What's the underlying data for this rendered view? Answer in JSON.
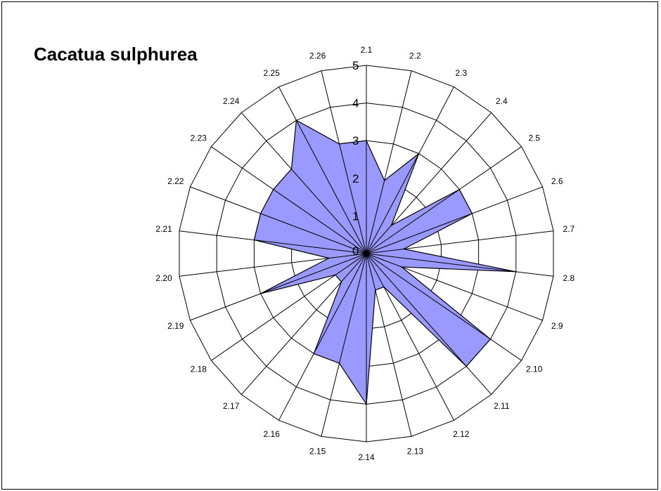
{
  "chart_data": {
    "type": "radar",
    "title": "Cacatua sulphurea",
    "categories": [
      "2.1",
      "2.2",
      "2.3",
      "2.4",
      "2.5",
      "2.6",
      "2.7",
      "2.8",
      "2.9",
      "2.10",
      "2.11",
      "2.12",
      "2.13",
      "2.14",
      "2.15",
      "2.16",
      "2.17",
      "2.18",
      "2.19",
      "2.20",
      "2.21",
      "2.22",
      "2.23",
      "2.24",
      "2.25",
      "2.26"
    ],
    "values": [
      3,
      2,
      3,
      1,
      3,
      3,
      1,
      4,
      1,
      4,
      4,
      1,
      1,
      4,
      3,
      3,
      1,
      1,
      3,
      1,
      3,
      3,
      3,
      3,
      4,
      3
    ],
    "rlim": [
      0,
      5
    ],
    "ring_labels": [
      "0",
      "1",
      "2",
      "3",
      "4",
      "5"
    ],
    "fill_color": "#9999ff",
    "grid": true
  }
}
